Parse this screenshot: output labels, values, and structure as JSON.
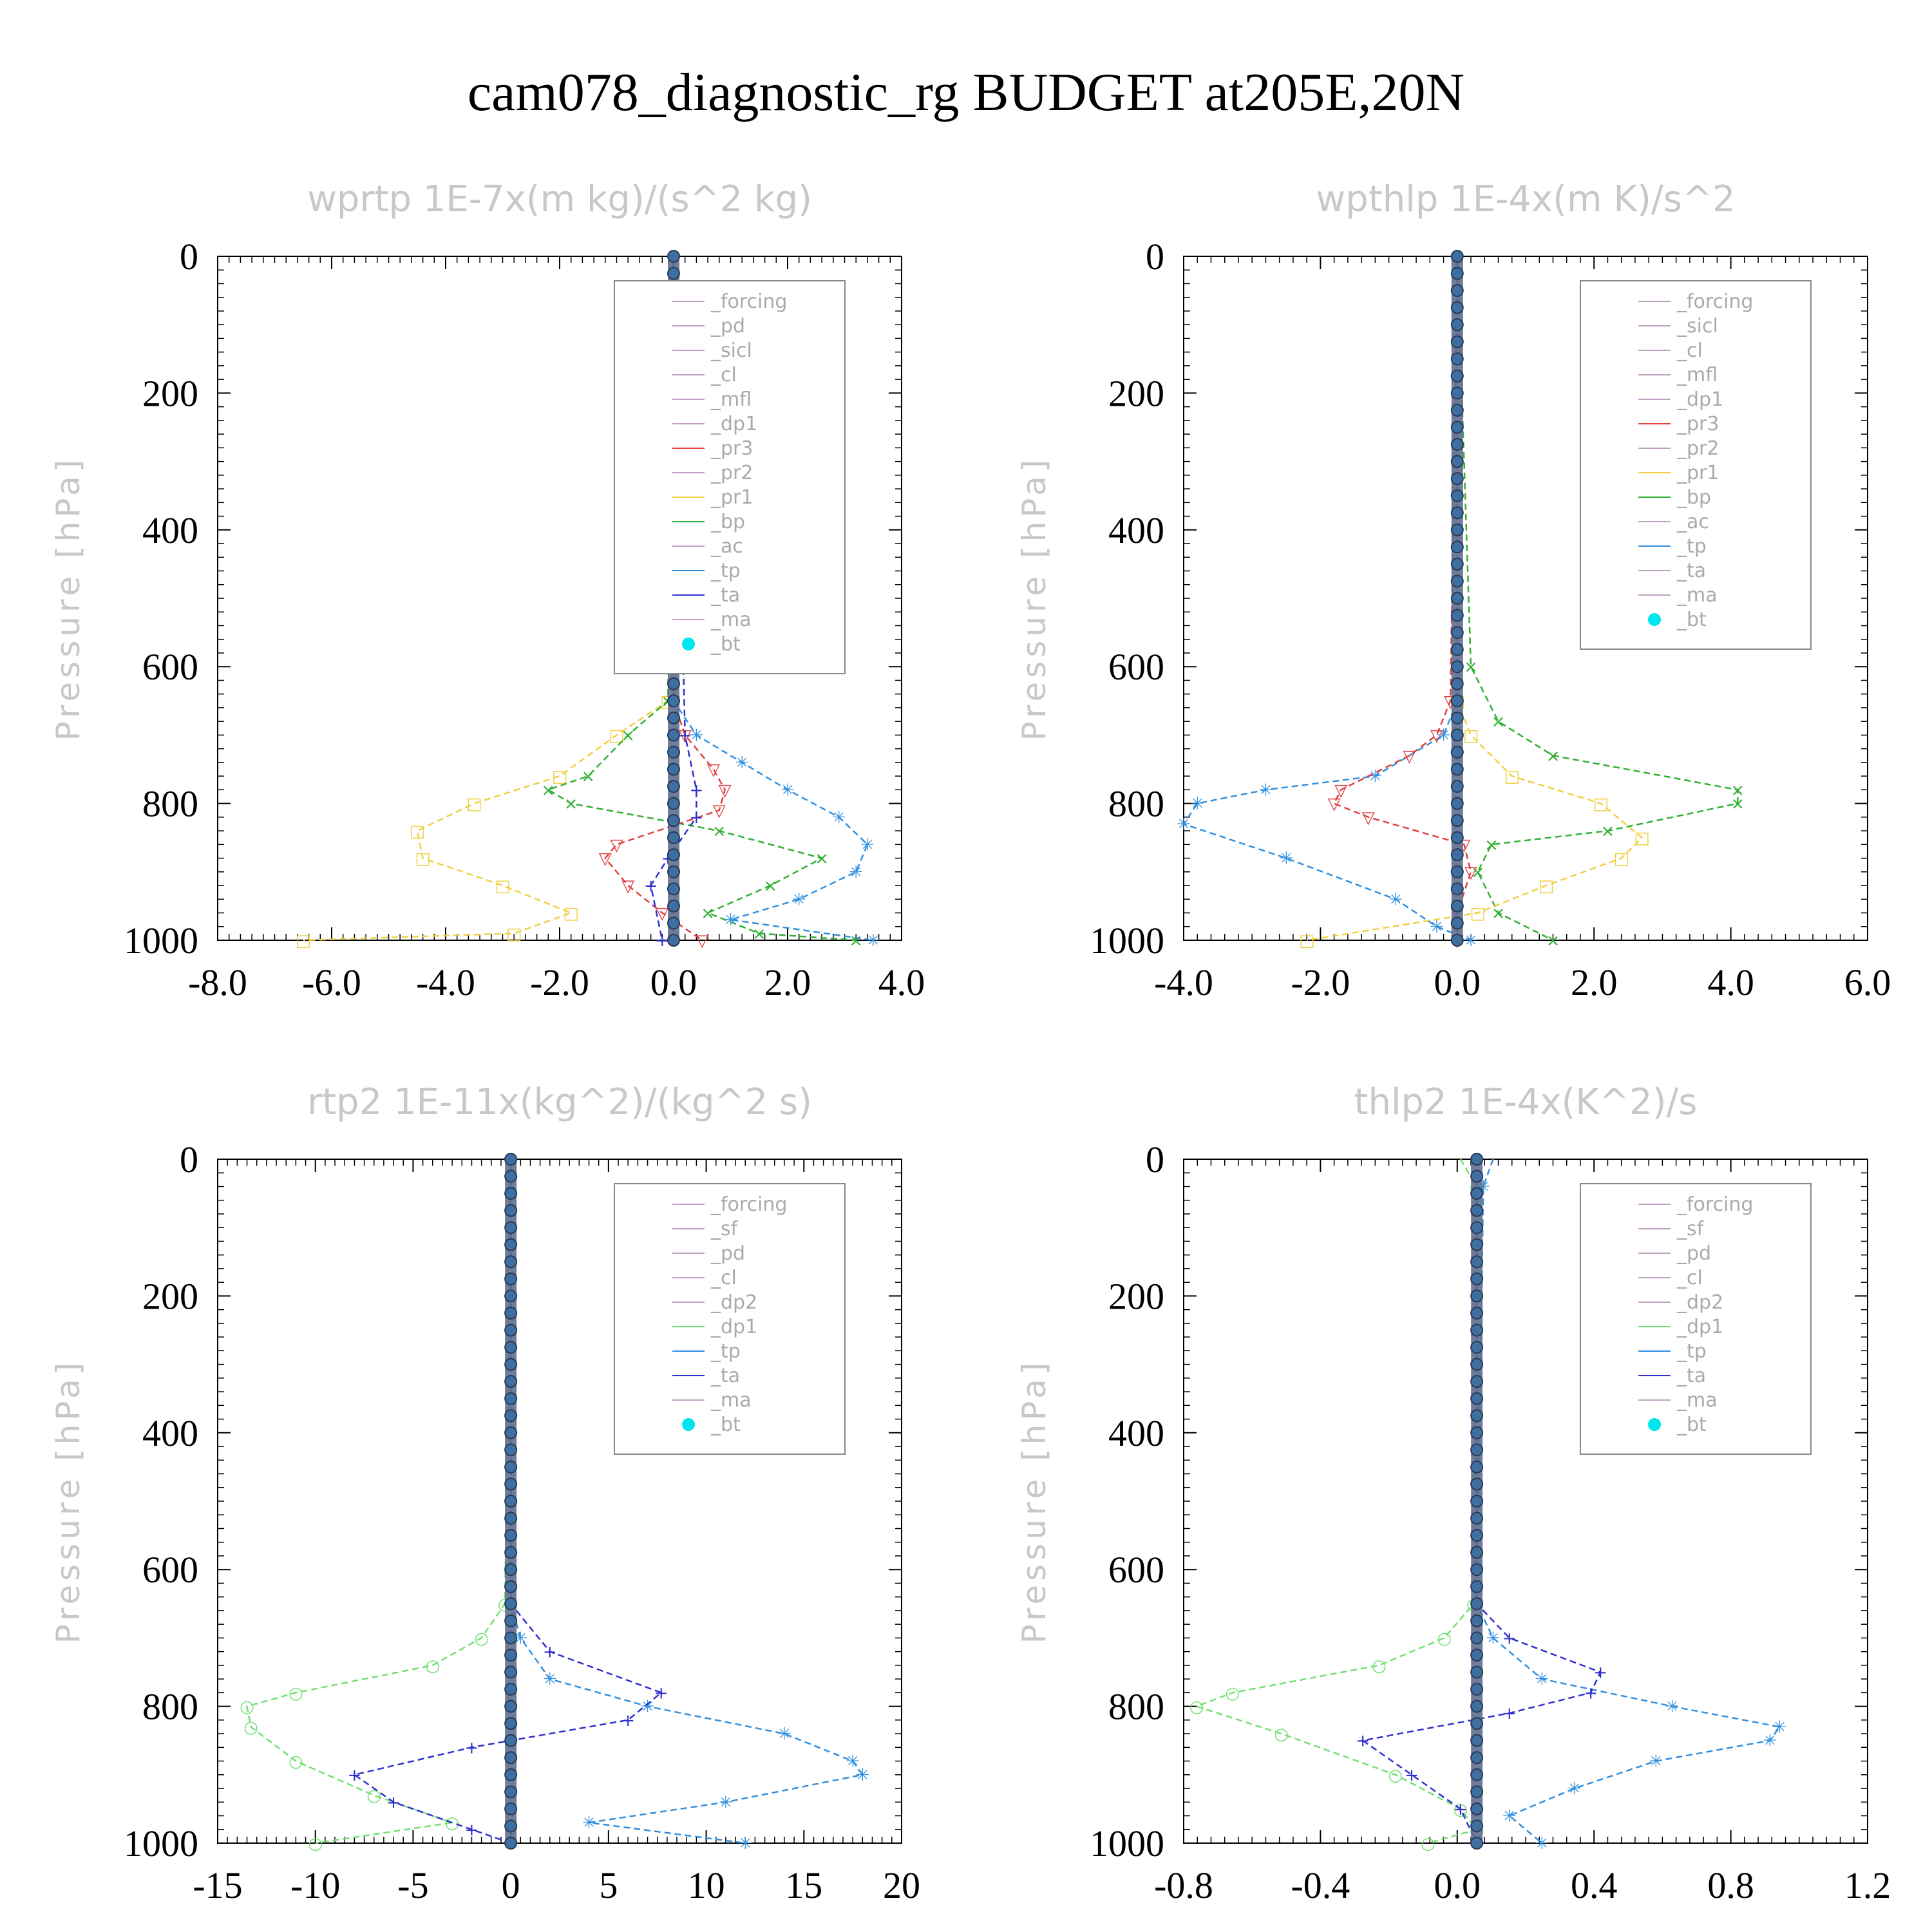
{
  "title": "cam078_diagnostic_rg  BUDGET at205E,20N",
  "chart_data": [
    {
      "type": "line",
      "title": "wprtp  1E-7x(m kg)/(s^2 kg)",
      "ylabel": "Pressure [hPa]",
      "xlim": [
        -8,
        4
      ],
      "ylim": [
        0,
        1000
      ],
      "xticks": [
        "-8.0",
        "-6.0",
        "-4.0",
        "-2.0",
        "0.0",
        "2.0",
        "4.0"
      ],
      "yticks": [
        "0",
        "200",
        "400",
        "600",
        "800",
        "1000"
      ],
      "legend": [
        "_forcing",
        "_pd",
        "_sicl",
        "_cl",
        "_mfl",
        "_dp1",
        "_pr3",
        "_pr2",
        "_pr1",
        "_bp",
        "_ac",
        "_tp",
        "_ta",
        "_ma",
        "_bt"
      ],
      "series": [
        {
          "name": "_pr1",
          "color": "#f0d040",
          "y": [
            0,
            650,
            700,
            760,
            800,
            840,
            880,
            920,
            960,
            990,
            1000
          ],
          "values": [
            0,
            -0.1,
            -1,
            -2,
            -3.5,
            -4.5,
            -4.4,
            -3,
            -1.8,
            -2.8,
            -6.5
          ]
        },
        {
          "name": "_bp",
          "color": "#30b030",
          "y": [
            0,
            650,
            700,
            760,
            780,
            800,
            840,
            880,
            920,
            960,
            990,
            1000
          ],
          "values": [
            0,
            -0.1,
            -0.8,
            -1.5,
            -2.2,
            -1.8,
            0.8,
            2.6,
            1.7,
            0.6,
            1.5,
            3.2
          ]
        },
        {
          "name": "_tp",
          "color": "#3090e0",
          "y": [
            0,
            650,
            700,
            740,
            780,
            820,
            860,
            900,
            940,
            970,
            1000
          ],
          "values": [
            0,
            0,
            0.4,
            1.2,
            2.0,
            2.9,
            3.4,
            3.2,
            2.2,
            1.0,
            3.5
          ]
        },
        {
          "name": "_pr3",
          "color": "#e04040",
          "y": [
            0,
            650,
            700,
            750,
            780,
            810,
            860,
            880,
            920,
            960,
            1000
          ],
          "values": [
            0,
            0,
            0.2,
            0.7,
            0.9,
            0.8,
            -1.0,
            -1.2,
            -0.8,
            -0.2,
            0.5
          ]
        },
        {
          "name": "_ta",
          "color": "#3030d0",
          "y": [
            0,
            700,
            780,
            820,
            880,
            920,
            1000
          ],
          "values": [
            0,
            0.2,
            0.4,
            0.4,
            -0.1,
            -0.4,
            -0.2
          ]
        },
        {
          "name": "_bt",
          "color": "#4a5f86",
          "y": [
            0,
            1000
          ],
          "values": [
            0,
            0
          ]
        }
      ]
    },
    {
      "type": "line",
      "title": "wpthlp  1E-4x(m K)/s^2",
      "ylabel": "Pressure [hPa]",
      "xlim": [
        -4,
        6
      ],
      "ylim": [
        0,
        1000
      ],
      "xticks": [
        "-4.0",
        "-2.0",
        "0.0",
        "2.0",
        "4.0",
        "6.0"
      ],
      "yticks": [
        "0",
        "200",
        "400",
        "600",
        "800",
        "1000"
      ],
      "legend": [
        "_forcing",
        "_sicl",
        "_cl",
        "_mfl",
        "_dp1",
        "_pr3",
        "_pr2",
        "_pr1",
        "_bp",
        "_ac",
        "_tp",
        "_ta",
        "_ma",
        "_bt"
      ],
      "series": [
        {
          "name": "_bp",
          "color": "#30b030",
          "y": [
            0,
            600,
            680,
            730,
            780,
            800,
            840,
            860,
            900,
            960,
            1000
          ],
          "values": [
            0,
            0.2,
            0.6,
            1.4,
            4.1,
            4.1,
            2.2,
            0.5,
            0.3,
            0.6,
            1.4
          ]
        },
        {
          "name": "_pr1",
          "color": "#f0d040",
          "y": [
            0,
            650,
            700,
            760,
            800,
            850,
            880,
            920,
            960,
            1000
          ],
          "values": [
            0,
            0,
            0.2,
            0.8,
            2.1,
            2.7,
            2.4,
            1.3,
            0.3,
            -2.2
          ]
        },
        {
          "name": "_tp",
          "color": "#3090e0",
          "y": [
            0,
            650,
            700,
            760,
            780,
            800,
            830,
            880,
            940,
            980,
            1000
          ],
          "values": [
            0,
            0,
            -0.2,
            -1.2,
            -2.8,
            -3.8,
            -4.0,
            -2.5,
            -0.9,
            -0.3,
            0.2
          ]
        },
        {
          "name": "_pr3",
          "color": "#e04040",
          "y": [
            0,
            650,
            700,
            730,
            780,
            800,
            820,
            860,
            900,
            960,
            1000
          ],
          "values": [
            0,
            -0.1,
            -0.3,
            -0.7,
            -1.7,
            -1.8,
            -1.3,
            0.1,
            0.2,
            0,
            0
          ]
        },
        {
          "name": "_bt",
          "color": "#4a5f86",
          "y": [
            0,
            1000
          ],
          "values": [
            0,
            0
          ]
        }
      ]
    },
    {
      "type": "line",
      "title": "rtp2  1E-11x(kg^2)/(kg^2 s)",
      "ylabel": "Pressure [hPa]",
      "xlim": [
        -15,
        20
      ],
      "ylim": [
        0,
        1000
      ],
      "xticks": [
        "-15",
        "-10",
        "-5",
        "0",
        "5",
        "10",
        "15",
        "20"
      ],
      "yticks": [
        "0",
        "200",
        "400",
        "600",
        "800",
        "1000"
      ],
      "legend": [
        "_forcing",
        "_sf",
        "_pd",
        "_cl",
        "_dp2",
        "_dp1",
        "_tp",
        "_ta",
        "_ma",
        "_bt"
      ],
      "series": [
        {
          "name": "_dp1",
          "color": "#70e070",
          "y": [
            0,
            650,
            700,
            740,
            780,
            800,
            830,
            880,
            930,
            970,
            1000
          ],
          "values": [
            0,
            -0.3,
            -1.5,
            -4,
            -11,
            -13.5,
            -13.3,
            -11,
            -7,
            -3,
            -10
          ]
        },
        {
          "name": "_tp",
          "color": "#3090e0",
          "y": [
            0,
            650,
            700,
            760,
            800,
            840,
            880,
            900,
            940,
            970,
            1000
          ],
          "values": [
            0,
            0,
            0.5,
            2,
            7,
            14,
            17.5,
            18,
            11,
            4,
            12
          ]
        },
        {
          "name": "_ta",
          "color": "#3030d0",
          "y": [
            0,
            650,
            720,
            780,
            820,
            860,
            900,
            940,
            980,
            1000
          ],
          "values": [
            0,
            0,
            2,
            7.7,
            6,
            -2,
            -8,
            -6,
            -2,
            0
          ]
        },
        {
          "name": "_bt",
          "color": "#4a5f86",
          "y": [
            0,
            1000
          ],
          "values": [
            0,
            0
          ]
        }
      ]
    },
    {
      "type": "line",
      "title": "thlp2  1E-4x(K^2)/s",
      "ylabel": "Pressure [hPa]",
      "xlim": [
        -0.9,
        1.2
      ],
      "ylim": [
        0,
        1000
      ],
      "xticks": [
        "-0.8",
        "-0.4",
        "0.0",
        "0.4",
        "0.8",
        "1.2"
      ],
      "yticks": [
        "0",
        "200",
        "400",
        "600",
        "800",
        "1000"
      ],
      "legend": [
        "_forcing",
        "_sf",
        "_pd",
        "_cl",
        "_dp2",
        "_dp1",
        "_tp",
        "_ta",
        "_ma",
        "_bt"
      ],
      "series": [
        {
          "name": "_dp1",
          "color": "#70e070",
          "y": [
            0,
            40,
            650,
            700,
            740,
            780,
            800,
            840,
            900,
            950,
            980,
            1000
          ],
          "values": [
            -0.05,
            0,
            -0.01,
            -0.1,
            -0.3,
            -0.75,
            -0.86,
            -0.6,
            -0.25,
            -0.05,
            0,
            -0.15
          ]
        },
        {
          "name": "_tp",
          "color": "#3090e0",
          "y": [
            0,
            40,
            650,
            700,
            760,
            800,
            830,
            850,
            880,
            920,
            960,
            1000
          ],
          "values": [
            0.05,
            0.02,
            0,
            0.05,
            0.2,
            0.6,
            0.93,
            0.9,
            0.55,
            0.3,
            0.1,
            0.2
          ]
        },
        {
          "name": "_ta",
          "color": "#3030d0",
          "y": [
            0,
            650,
            700,
            750,
            780,
            810,
            850,
            900,
            950,
            1000
          ],
          "values": [
            0,
            0,
            0.1,
            0.38,
            0.35,
            0.1,
            -0.35,
            -0.2,
            -0.05,
            0
          ]
        },
        {
          "name": "_bt",
          "color": "#4a5f86",
          "y": [
            0,
            1000
          ],
          "values": [
            0,
            0
          ]
        }
      ]
    }
  ]
}
